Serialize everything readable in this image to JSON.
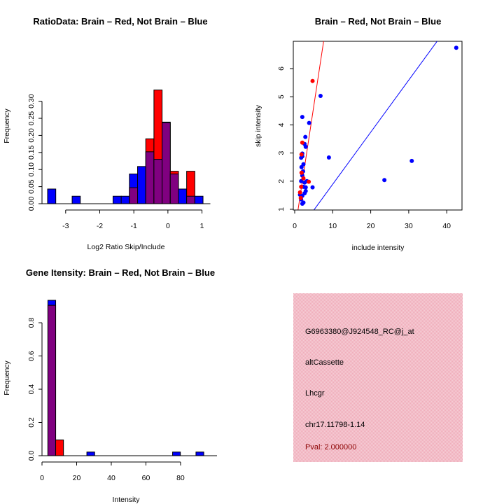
{
  "colors": {
    "red": "#ff0000",
    "blue": "#0000ff",
    "overlap": "#800080",
    "panel_bg": "#f4c0ca"
  },
  "chart_data": [
    {
      "type": "bar",
      "title": "RatioData: Brain – Red, Not Brain – Blue",
      "xlabel": "Log2 Ratio Skip/Include",
      "ylabel": "Frequency",
      "xlim": [
        -3.53,
        1.04
      ],
      "ylim": [
        0,
        0.33
      ],
      "xticks": [
        "-3",
        "-2",
        "-1",
        "0",
        "1"
      ],
      "yticks": [
        "0.00",
        "0.05",
        "0.10",
        "0.15",
        "0.20",
        "0.25",
        "0.30"
      ],
      "bin_start": -3.53,
      "bin_width": 0.24,
      "series": [
        {
          "name": "Brain",
          "color": "red",
          "values": [
            0,
            0,
            0,
            0,
            0,
            0,
            0,
            0,
            0,
            0,
            0.047,
            0,
            0.19,
            0.333,
            0.237,
            0.095,
            0,
            0.095,
            0
          ]
        },
        {
          "name": "Not Brain",
          "color": "blue",
          "values": [
            0.043,
            0,
            0,
            0.022,
            0,
            0,
            0,
            0,
            0.022,
            0.022,
            0.087,
            0.109,
            0.152,
            0.13,
            0.239,
            0.087,
            0.043,
            0.022,
            0.022
          ]
        }
      ]
    },
    {
      "type": "scatter",
      "title": "Brain – Red, Not Brain – Blue",
      "xlabel": "include intensity",
      "ylabel": "skip intensity",
      "xlim": [
        -0.4,
        44
      ],
      "ylim": [
        1,
        6.97
      ],
      "xticks": [
        "0",
        "10",
        "20",
        "30",
        "40"
      ],
      "yticks": [
        "1",
        "2",
        "3",
        "4",
        "5",
        "6"
      ],
      "series": [
        {
          "name": "Brain",
          "color": "red",
          "points": [
            [
              4.7,
              5.56
            ],
            [
              2.0,
              3.37
            ],
            [
              3.7,
              1.98
            ],
            [
              1.6,
              1.4
            ],
            [
              1.4,
              1.6
            ],
            [
              2.3,
              2.1
            ],
            [
              1.7,
              1.8
            ],
            [
              1.8,
              2.3
            ],
            [
              1.8,
              2.95
            ]
          ],
          "fit": {
            "slope": 0.89,
            "intercept": 0.2
          }
        },
        {
          "name": "Not Brain",
          "color": "blue",
          "points": [
            [
              42.5,
              6.74
            ],
            [
              6.8,
              5.03
            ],
            [
              2.0,
              4.28
            ],
            [
              3.8,
              4.07
            ],
            [
              2.8,
              3.57
            ],
            [
              2.6,
              3.32
            ],
            [
              2.9,
              3.22
            ],
            [
              2.0,
              2.98
            ],
            [
              1.7,
              2.83
            ],
            [
              2.0,
              2.88
            ],
            [
              9.0,
              2.84
            ],
            [
              30.8,
              2.72
            ],
            [
              23.6,
              2.04
            ],
            [
              4.7,
              1.78
            ],
            [
              2.3,
              2.6
            ],
            [
              1.8,
              2.5
            ],
            [
              2.2,
              2.35
            ],
            [
              2.0,
              2.2
            ],
            [
              1.7,
              2.0
            ],
            [
              2.6,
              1.95
            ],
            [
              3.2,
              2.0
            ],
            [
              2.3,
              1.8
            ],
            [
              2.9,
              1.78
            ],
            [
              1.4,
              1.52
            ],
            [
              2.0,
              1.48
            ],
            [
              2.6,
              1.57
            ],
            [
              1.7,
              1.35
            ],
            [
              2.0,
              1.2
            ],
            [
              2.3,
              1.24
            ],
            [
              2.9,
              1.65
            ]
          ],
          "fit": {
            "slope": 0.185,
            "intercept": 0.04
          }
        }
      ]
    },
    {
      "type": "bar",
      "title": "Gene Itensity: Brain – Red, Not Brain – Blue",
      "xlabel": "Intensity",
      "ylabel": "Frequency",
      "xlim": [
        0,
        97
      ],
      "ylim": [
        0,
        0.935
      ],
      "xticks": [
        "0",
        "20",
        "40",
        "60",
        "80"
      ],
      "yticks": [
        "0.0",
        "0.2",
        "0.4",
        "0.6",
        "0.8"
      ],
      "bin_start": 3.4,
      "bin_width": 4.5,
      "series": [
        {
          "name": "Brain",
          "color": "red",
          "values": [
            0.905,
            0.095,
            0,
            0,
            0,
            0,
            0,
            0,
            0,
            0,
            0,
            0,
            0,
            0,
            0,
            0,
            0,
            0,
            0,
            0
          ]
        },
        {
          "name": "Not Brain",
          "color": "blue",
          "values": [
            0.935,
            0,
            0,
            0,
            0,
            0.022,
            0,
            0,
            0,
            0,
            0,
            0,
            0,
            0,
            0,
            0,
            0.022,
            0,
            0,
            0.022
          ]
        }
      ]
    }
  ],
  "info_panel": {
    "probe_id": "G6963380@J924548_RC@j_at",
    "event_type": "altCassette",
    "gene": "Lhcgr",
    "location": "chr17.11798-1.14",
    "pval": "Pval: 2.000000"
  }
}
